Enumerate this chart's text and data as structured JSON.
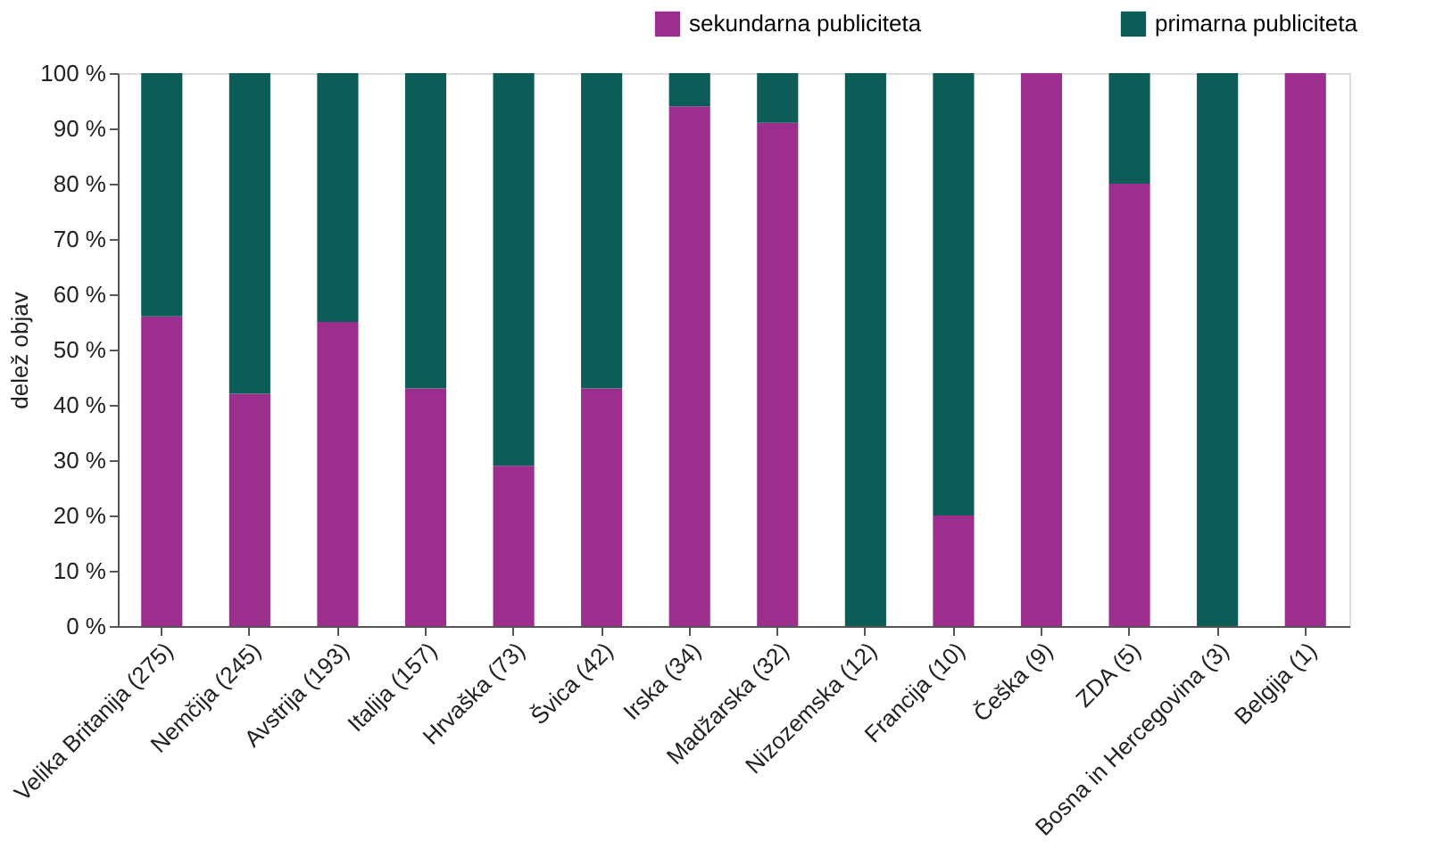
{
  "chart_data": {
    "type": "bar",
    "stacked": true,
    "ylabel": "delež objav",
    "categories": [
      "Velika Britanija (275)",
      "Nemčija (245)",
      "Avstrija (193)",
      "Italija (157)",
      "Hrvaška (73)",
      "Švica (42)",
      "Irska (34)",
      "Madžarska (32)",
      "Nizozemska (12)",
      "Francija (10)",
      "Češka (9)",
      "ZDA (5)",
      "Bosna in Hercegovina (3)",
      "Belgija (1)"
    ],
    "series": [
      {
        "name": "sekundarna publiciteta",
        "color": "#9c2f8e",
        "values": [
          56,
          42,
          55,
          43,
          29,
          43,
          94,
          91,
          0,
          20,
          100,
          80,
          0,
          100
        ]
      },
      {
        "name": "primarna publiciteta",
        "color": "#0c5c57",
        "values": [
          44,
          58,
          45,
          57,
          71,
          57,
          6,
          9,
          100,
          80,
          0,
          20,
          100,
          0
        ]
      }
    ],
    "ylim": [
      0,
      100
    ],
    "yticks": [
      {
        "value": 0,
        "label": "0 %"
      },
      {
        "value": 10,
        "label": "10 %"
      },
      {
        "value": 20,
        "label": "20 %"
      },
      {
        "value": 30,
        "label": "30 %"
      },
      {
        "value": 40,
        "label": "40 %"
      },
      {
        "value": 50,
        "label": "50 %"
      },
      {
        "value": 60,
        "label": "60 %"
      },
      {
        "value": 70,
        "label": "70 %"
      },
      {
        "value": 80,
        "label": "80 %"
      },
      {
        "value": 90,
        "label": "90 %"
      },
      {
        "value": 100,
        "label": "100 %"
      }
    ],
    "grid": false,
    "legend": "top right"
  }
}
